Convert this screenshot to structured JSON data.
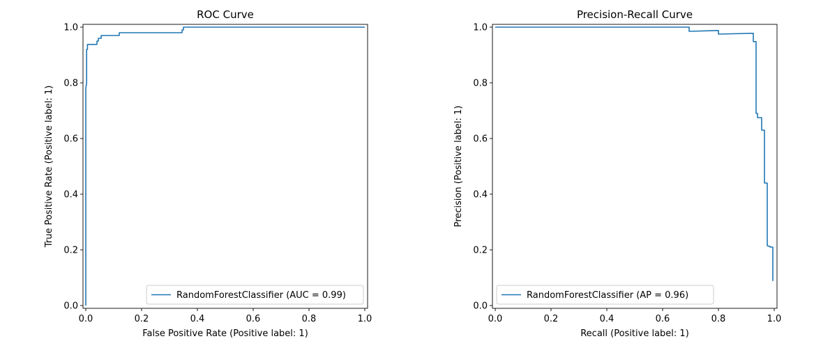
{
  "chart_data": [
    {
      "type": "line",
      "title": "ROC Curve",
      "xlabel": "False Positive Rate (Positive label: 1)",
      "ylabel": "True Positive Rate (Positive label: 1)",
      "xlim": [
        -0.01,
        1.01
      ],
      "ylim": [
        -0.01,
        1.01
      ],
      "xticks": [
        "0.0",
        "0.2",
        "0.4",
        "0.6",
        "0.8",
        "1.0"
      ],
      "yticks": [
        "0.0",
        "0.2",
        "0.4",
        "0.6",
        "0.8",
        "1.0"
      ],
      "grid": false,
      "legend_position": "lower-right",
      "series": [
        {
          "name": "RandomForestClassifier (AUC = 0.99)",
          "color": "#1f77b4",
          "x": [
            0.0,
            0.0,
            0.0,
            0.0,
            0.003,
            0.003,
            0.006,
            0.006,
            0.04,
            0.04,
            0.045,
            0.045,
            0.055,
            0.055,
            0.12,
            0.12,
            0.345,
            0.345,
            0.35,
            0.35,
            1.0
          ],
          "y": [
            0.0,
            0.52,
            0.7,
            0.78,
            0.8,
            0.92,
            0.92,
            0.938,
            0.938,
            0.95,
            0.95,
            0.96,
            0.96,
            0.97,
            0.97,
            0.98,
            0.98,
            0.99,
            0.99,
            1.0,
            1.0
          ]
        }
      ]
    },
    {
      "type": "line",
      "title": "Precision-Recall Curve",
      "xlabel": "Recall (Positive label: 1)",
      "ylabel": "Precision (Positive label: 1)",
      "xlim": [
        -0.01,
        1.01
      ],
      "ylim": [
        -0.01,
        1.01
      ],
      "xticks": [
        "0.0",
        "0.2",
        "0.4",
        "0.6",
        "0.8",
        "1.0"
      ],
      "yticks": [
        "0.0",
        "0.2",
        "0.4",
        "0.6",
        "0.8",
        "1.0"
      ],
      "grid": false,
      "legend_position": "lower-left",
      "series": [
        {
          "name": "RandomForestClassifier (AP = 0.96)",
          "color": "#1f77b4",
          "x": [
            0.0,
            0.695,
            0.695,
            0.8,
            0.8,
            0.925,
            0.925,
            0.935,
            0.935,
            0.94,
            0.94,
            0.955,
            0.955,
            0.965,
            0.965,
            0.975,
            0.975,
            0.985,
            0.985,
            0.995,
            0.995
          ],
          "y": [
            1.0,
            1.0,
            0.985,
            0.988,
            0.975,
            0.978,
            0.948,
            0.948,
            0.69,
            0.69,
            0.675,
            0.675,
            0.63,
            0.63,
            0.44,
            0.44,
            0.215,
            0.212,
            0.21,
            0.21,
            0.088
          ]
        }
      ]
    }
  ]
}
